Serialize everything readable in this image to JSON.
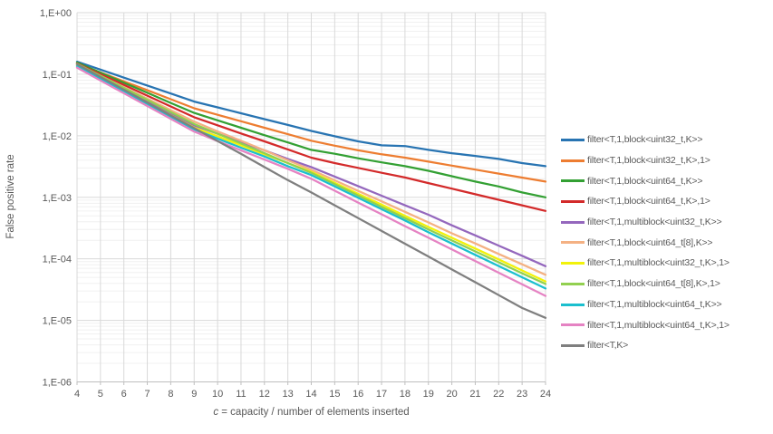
{
  "axes": {
    "y_label": "False positive rate",
    "x_label_italic": "c",
    "x_label_rest": " = capacity / number of elements inserted",
    "y_ticks": [
      {
        "label": "1,E+00",
        "exp": 0
      },
      {
        "label": "1,E-01",
        "exp": -1
      },
      {
        "label": "1,E-02",
        "exp": -2
      },
      {
        "label": "1,E-03",
        "exp": -3
      },
      {
        "label": "1,E-04",
        "exp": -4
      },
      {
        "label": "1,E-05",
        "exp": -5
      },
      {
        "label": "1,E-06",
        "exp": -6
      }
    ],
    "x_ticks": [
      4,
      5,
      6,
      7,
      8,
      9,
      10,
      11,
      12,
      13,
      14,
      15,
      16,
      17,
      18,
      19,
      20,
      21,
      22,
      23,
      24
    ]
  },
  "colors": {
    "major_grid": "#d9d9d9",
    "minor_grid": "#f0f0f0",
    "axis_line": "#bfbfbf",
    "tick_text": "#595959"
  },
  "chart_data": {
    "type": "line",
    "y_scale": "log",
    "xlim": [
      4,
      24
    ],
    "ylim": [
      1e-06,
      1
    ],
    "grid": true,
    "legend_position": "right",
    "title": "",
    "xlabel": "c = capacity / number of elements inserted",
    "ylabel": "False positive rate",
    "x": [
      4,
      5,
      6,
      7,
      8,
      9,
      10,
      11,
      12,
      13,
      14,
      15,
      16,
      17,
      18,
      19,
      20,
      21,
      22,
      23,
      24
    ],
    "series": [
      {
        "name": "filter<T,1,block<uint32_t,K>>",
        "color": "#2874b2",
        "values": [
          0.16,
          0.119,
          0.088,
          0.0655,
          0.0486,
          0.036,
          0.0289,
          0.0232,
          0.0186,
          0.015,
          0.012,
          0.0098,
          0.0081,
          0.007,
          0.0068,
          0.0059,
          0.0052,
          0.0047,
          0.0042,
          0.0036,
          0.0032
        ]
      },
      {
        "name": "filter<T,1,block<uint32_t,K>,1>",
        "color": "#ed7d31",
        "values": [
          0.15,
          0.107,
          0.0766,
          0.0549,
          0.0393,
          0.028,
          0.0219,
          0.0172,
          0.0135,
          0.0106,
          0.0083,
          0.0069,
          0.0058,
          0.005,
          0.0044,
          0.0038,
          0.00327,
          0.00282,
          0.00243,
          0.00209,
          0.0018
        ]
      },
      {
        "name": "filter<T,1,block<uint64_t,K>>",
        "color": "#33a033",
        "values": [
          0.155,
          0.106,
          0.0728,
          0.0499,
          0.0342,
          0.0235,
          0.0178,
          0.0135,
          0.0102,
          0.0078,
          0.0059,
          0.0051,
          0.0043,
          0.0037,
          0.0032,
          0.0027,
          0.0022,
          0.0018,
          0.0015,
          0.0012,
          0.001
        ]
      },
      {
        "name": "filter<T,1,block<uint64_t,K>,1>",
        "color": "#d32a2a",
        "values": [
          0.15,
          0.1,
          0.067,
          0.0448,
          0.0299,
          0.02,
          0.0148,
          0.0109,
          0.0081,
          0.006,
          0.0044,
          0.0036,
          0.003,
          0.0025,
          0.0021,
          0.0017,
          0.00138,
          0.00112,
          0.00091,
          0.00074,
          0.0006
        ]
      },
      {
        "name": "filter<T,1,multiblock<uint32_t,K>>",
        "color": "#9467bd",
        "values": [
          0.14,
          0.0891,
          0.0568,
          0.0362,
          0.0231,
          0.0147,
          0.0108,
          0.0079,
          0.0058,
          0.0042,
          0.0031,
          0.00217,
          0.00152,
          0.00106,
          0.00074,
          0.00052,
          0.00035,
          0.00024,
          0.000164,
          0.000112,
          7.6e-05
        ]
      },
      {
        "name": "filter<T,1,block<uint64_t[8],K>>",
        "color": "#f4b183",
        "values": [
          0.145,
          0.0944,
          0.0615,
          0.0401,
          0.0261,
          0.017,
          0.0118,
          0.0083,
          0.0058,
          0.004,
          0.0028,
          0.00189,
          0.00127,
          0.00086,
          0.00058,
          0.00039,
          0.00026,
          0.000178,
          0.00012,
          8.15e-05,
          5.5e-05
        ]
      },
      {
        "name": "filter<T,1,multiblock<uint32_t,K>,1>",
        "color": "#f2f20a",
        "values": [
          0.138,
          0.0868,
          0.0546,
          0.0344,
          0.0216,
          0.0136,
          0.0098,
          0.007,
          0.005,
          0.0036,
          0.0026,
          0.00172,
          0.00114,
          0.00076,
          0.0005,
          0.00033,
          0.00022,
          0.000147,
          9.8e-05,
          6.47e-05,
          4.3e-05
        ]
      },
      {
        "name": "filter<T,1,block<uint64_t[8],K>,1>",
        "color": "#92d050",
        "values": [
          0.148,
          0.0943,
          0.06,
          0.0382,
          0.0243,
          0.0155,
          0.0108,
          0.0075,
          0.0052,
          0.0036,
          0.0025,
          0.00163,
          0.00107,
          0.0007,
          0.00046,
          0.0003,
          0.000199,
          0.000132,
          8.77e-05,
          5.82e-05,
          3.9e-05
        ]
      },
      {
        "name": "filter<T,1,multiblock<uint64_t,K>>",
        "color": "#1bbfce",
        "values": [
          0.135,
          0.0841,
          0.0524,
          0.0327,
          0.0204,
          0.0127,
          0.009,
          0.0064,
          0.0046,
          0.0032,
          0.0023,
          0.0015,
          0.00098,
          0.00064,
          0.00042,
          0.00027,
          0.000177,
          0.000116,
          7.64e-05,
          5.02e-05,
          3.3e-05
        ]
      },
      {
        "name": "filter<T,1,multiblock<uint64_t,K>,1>",
        "color": "#e583c3",
        "values": [
          0.128,
          0.0793,
          0.0491,
          0.0304,
          0.0189,
          0.0117,
          0.0082,
          0.0058,
          0.0041,
          0.0029,
          0.002,
          0.00128,
          0.00082,
          0.00053,
          0.00034,
          0.00022,
          0.000142,
          9.21e-05,
          5.95e-05,
          3.85e-05,
          2.5e-05
        ]
      },
      {
        "name": "filter<T,K>",
        "color": "#7f7f7f",
        "values": [
          0.146,
          0.0905,
          0.056,
          0.0346,
          0.0214,
          0.0133,
          0.0082,
          0.0051,
          0.0031,
          0.0019,
          0.0012,
          0.000742,
          0.000459,
          0.000284,
          0.000176,
          0.000109,
          6.72e-05,
          4.16e-05,
          2.57e-05,
          1.59e-05,
          1.1e-05
        ]
      }
    ]
  }
}
